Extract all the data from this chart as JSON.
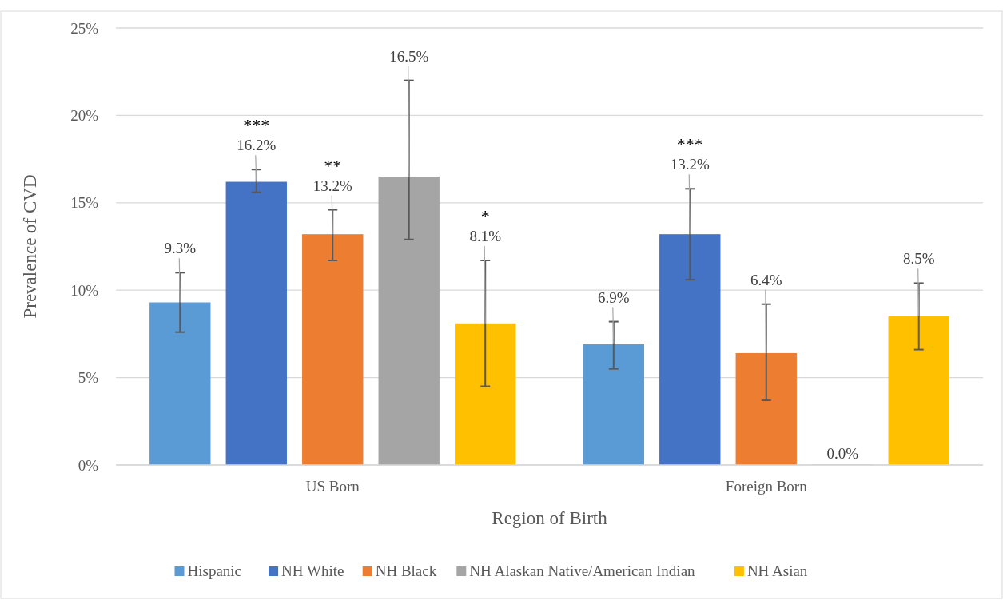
{
  "chart_data": {
    "type": "bar",
    "xlabel": "Region of Birth",
    "ylabel": "Prevalence of CVD",
    "categories": [
      "US Born",
      "Foreign Born"
    ],
    "series": [
      {
        "name": "Hispanic",
        "color": "#5b9bd5",
        "values": [
          9.3,
          6.9
        ],
        "errors": [
          [
            7.6,
            11.0
          ],
          [
            5.5,
            8.2
          ]
        ],
        "value_labels": [
          "9.3%",
          "6.9%"
        ]
      },
      {
        "name": "NH White",
        "color": "#4472c4",
        "values": [
          16.2,
          13.2
        ],
        "errors": [
          [
            15.6,
            16.9
          ],
          [
            10.6,
            15.8
          ]
        ],
        "value_labels": [
          "***\n16.2%",
          "***\n13.2%"
        ]
      },
      {
        "name": "NH Black",
        "color": "#ed7d31",
        "values": [
          13.2,
          6.4
        ],
        "errors": [
          [
            11.7,
            14.6
          ],
          [
            3.7,
            9.2
          ]
        ],
        "value_labels": [
          "**\n13.2%",
          "6.4%"
        ]
      },
      {
        "name": "NH Alaskan Native/American Indian",
        "color": "#a5a5a5",
        "values": [
          16.5,
          0.0
        ],
        "errors": [
          [
            12.9,
            22.0
          ],
          null
        ],
        "value_labels": [
          "16.5%",
          "0.0%"
        ]
      },
      {
        "name": "NH Asian",
        "color": "#ffc000",
        "values": [
          8.1,
          8.5
        ],
        "errors": [
          [
            4.5,
            11.7
          ],
          [
            6.6,
            10.4
          ]
        ],
        "value_labels": [
          "*\n8.1%",
          "8.5%"
        ]
      }
    ],
    "ylim": [
      0,
      25
    ],
    "yticks": [
      {
        "value": 0,
        "label": "0%"
      },
      {
        "value": 5,
        "label": "5%"
      },
      {
        "value": 10,
        "label": "10%"
      },
      {
        "value": 15,
        "label": "15%"
      },
      {
        "value": 20,
        "label": "20%"
      },
      {
        "value": 25,
        "label": "25%"
      }
    ],
    "grid": "y",
    "legend": "bottom"
  }
}
